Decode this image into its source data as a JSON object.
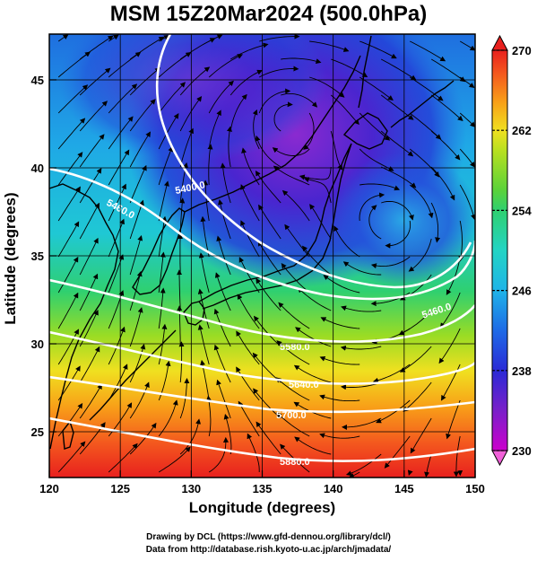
{
  "title": "MSM 15Z20Mar2024 (500.0hPa)",
  "xlabel": "Longitude (degrees)",
  "ylabel": "Latitude  (degrees)",
  "credit": {
    "line1": "Drawing by DCL (https://www.gfd-dennou.org/library/dcl/)",
    "line2": "Data from http://database.rish.kyoto-u.ac.jp/arch/jmadata/"
  },
  "map": {
    "xlim": [
      120,
      150
    ],
    "ylim": [
      22.4,
      47.6
    ],
    "xticks": [
      "120",
      "125",
      "130",
      "135",
      "140",
      "145",
      "150"
    ],
    "yticks": [
      "25",
      "30",
      "35",
      "40",
      "45"
    ],
    "grid": true
  },
  "colorbar": {
    "range": [
      230,
      270
    ],
    "labels": [
      "270",
      "262",
      "254",
      "246",
      "238",
      "230"
    ],
    "colors": [
      "#cc00cc",
      "#7a1fc9",
      "#2a2ad6",
      "#1e6ae6",
      "#1fb4e8",
      "#23d4c4",
      "#2fd070",
      "#5ad23a",
      "#b8e020",
      "#f0e020",
      "#f8a018",
      "#f45a1e",
      "#e8201e"
    ]
  },
  "contours": [
    {
      "label": "5400.0",
      "color": "#ffffff"
    },
    {
      "label": "5460.0",
      "color": "#ffffff"
    },
    {
      "label": "5580.0",
      "color": "#ffffff"
    },
    {
      "label": "5640.0",
      "color": "#ffffff"
    },
    {
      "label": "5700.0",
      "color": "#ffffff"
    },
    {
      "label": "5880.0",
      "color": "#ffffff"
    }
  ]
}
